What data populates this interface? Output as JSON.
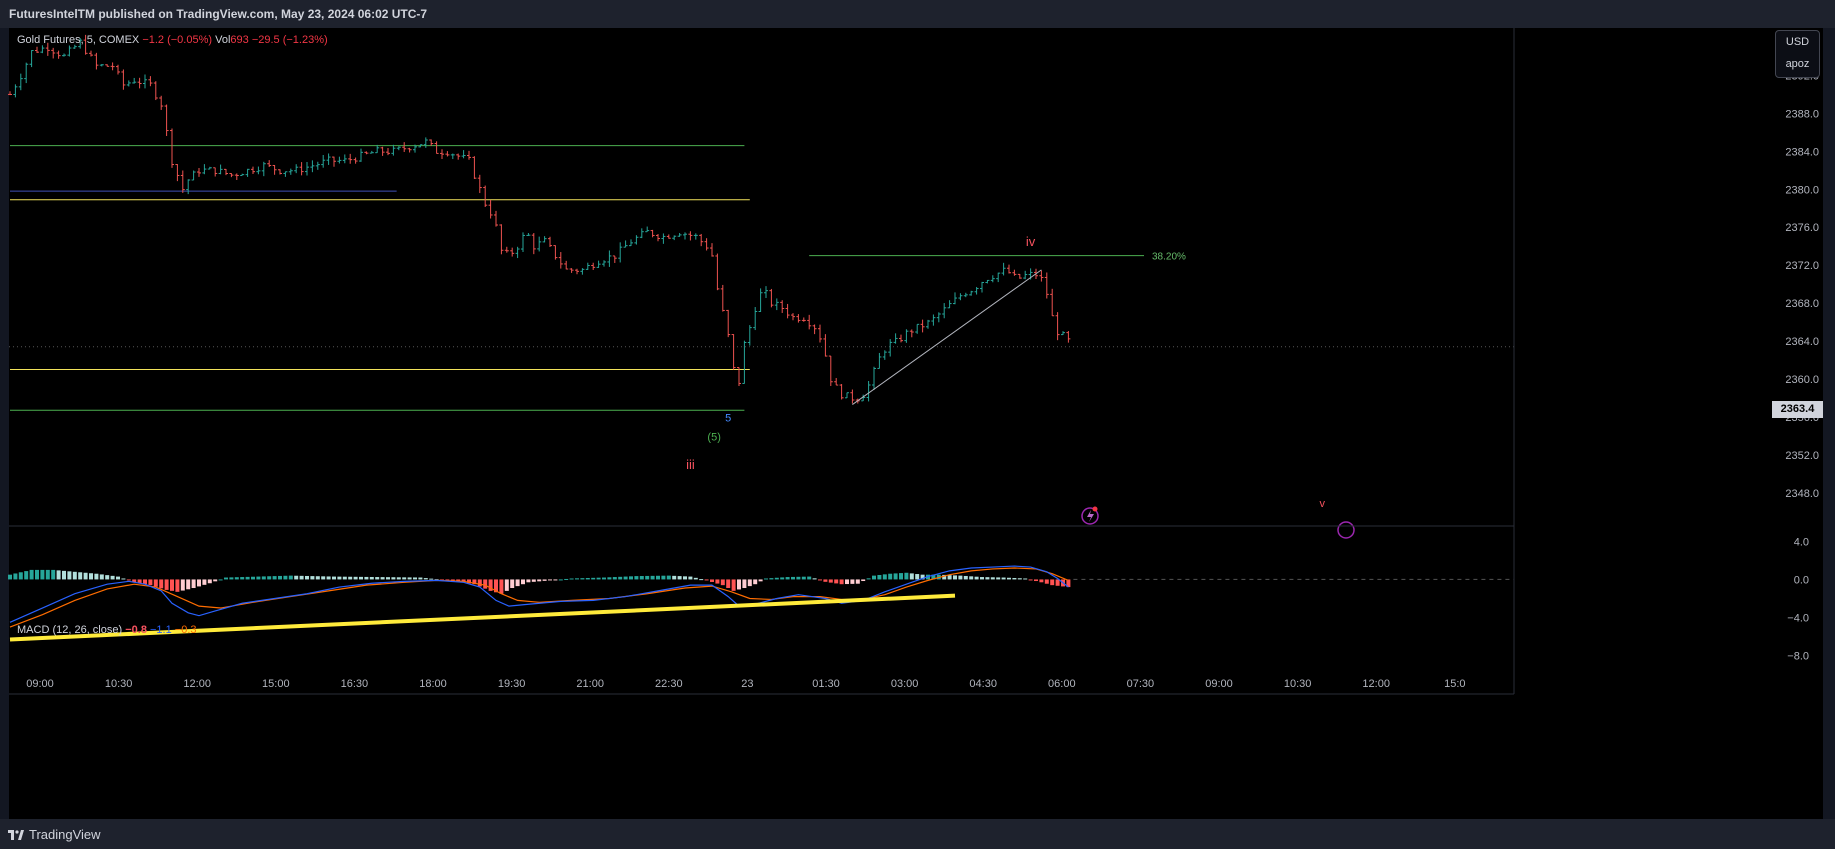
{
  "header": {
    "published_text": "FuturesIntelTM published on TradingView.com, May 23, 2024 06:02 UTC-7"
  },
  "legend": {
    "symbol": "Gold Futures, 5, COMEX",
    "change": "−1.2 (−0.05%)",
    "vol_label": "Vol",
    "vol_value": "693",
    "vol_change": "−29.5 (−1.23%)"
  },
  "macd_legend": {
    "label": "MACD (12, 26, close)",
    "v1": "−0.8",
    "v2": "−1.1",
    "v3": "−0.3"
  },
  "price_scale": {
    "currency": "USD",
    "sub": "apoz",
    "current_price": "2363.4"
  },
  "footer": {
    "brand": "TradingView"
  },
  "colors": {
    "up": "#26a69a",
    "down": "#ef5350",
    "green_line": "#4caf50",
    "yellow_line": "#f2e35c",
    "blue_line": "#3f51b5",
    "macd_line": "#2962ff",
    "signal_line": "#ff6d00",
    "wave_label": "#f7525f"
  },
  "chart_data": [
    {
      "type": "candlestick",
      "title": "Gold Futures, 5, COMEX",
      "x_ticks": [
        "09:00",
        "10:30",
        "12:00",
        "15:00",
        "16:30",
        "18:00",
        "19:30",
        "21:00",
        "22:30",
        "23",
        "01:30",
        "03:00",
        "04:30",
        "06:00",
        "07:30",
        "09:00",
        "10:30",
        "12:00",
        "15:0"
      ],
      "y_ticks": [
        2392.0,
        2388.0,
        2384.0,
        2380.0,
        2376.0,
        2372.0,
        2368.0,
        2364.0,
        2360.0,
        2356.0,
        2352.0,
        2348.0
      ],
      "ylim": [
        2344.5,
        2397.0
      ],
      "x_index_range": [
        0,
        1000
      ],
      "price_path": [
        [
          0,
          2390
        ],
        [
          10,
          2392
        ],
        [
          20,
          2394.5
        ],
        [
          35,
          2395
        ],
        [
          50,
          2394
        ],
        [
          65,
          2395.5
        ],
        [
          80,
          2393
        ],
        [
          95,
          2393
        ],
        [
          105,
          2391
        ],
        [
          115,
          2391.5
        ],
        [
          130,
          2391
        ],
        [
          140,
          2389
        ],
        [
          145,
          2386
        ],
        [
          150,
          2383
        ],
        [
          155,
          2381.5
        ],
        [
          160,
          2380
        ],
        [
          165,
          2381
        ],
        [
          175,
          2382
        ],
        [
          190,
          2382
        ],
        [
          205,
          2381.5
        ],
        [
          220,
          2382
        ],
        [
          235,
          2382.5
        ],
        [
          250,
          2382
        ],
        [
          265,
          2382
        ],
        [
          280,
          2382.5
        ],
        [
          295,
          2383
        ],
        [
          310,
          2383
        ],
        [
          325,
          2383.5
        ],
        [
          340,
          2384
        ],
        [
          355,
          2384
        ],
        [
          370,
          2384.5
        ],
        [
          385,
          2385
        ],
        [
          395,
          2384
        ],
        [
          405,
          2384
        ],
        [
          415,
          2383.5
        ],
        [
          425,
          2383
        ],
        [
          435,
          2380
        ],
        [
          440,
          2378.5
        ],
        [
          448,
          2377
        ],
        [
          455,
          2373.5
        ],
        [
          462,
          2373
        ],
        [
          470,
          2374
        ],
        [
          478,
          2375.5
        ],
        [
          485,
          2374
        ],
        [
          495,
          2374.5
        ],
        [
          505,
          2373
        ],
        [
          515,
          2371.5
        ],
        [
          530,
          2371.5
        ],
        [
          545,
          2372.5
        ],
        [
          560,
          2373
        ],
        [
          575,
          2374.5
        ],
        [
          590,
          2375.5
        ],
        [
          605,
          2375
        ],
        [
          620,
          2375.5
        ],
        [
          635,
          2375
        ],
        [
          645,
          2374
        ],
        [
          650,
          2373
        ],
        [
          655,
          2369.5
        ],
        [
          660,
          2367
        ],
        [
          665,
          2364.5
        ],
        [
          670,
          2361
        ],
        [
          673,
          2357.5
        ],
        [
          678,
          2363
        ],
        [
          684,
          2365
        ],
        [
          690,
          2367.5
        ],
        [
          697,
          2369.5
        ],
        [
          705,
          2368
        ],
        [
          715,
          2367.5
        ],
        [
          725,
          2366.5
        ],
        [
          735,
          2366.5
        ],
        [
          745,
          2365.5
        ],
        [
          752,
          2364
        ],
        [
          760,
          2360
        ],
        [
          768,
          2358.5
        ],
        [
          778,
          2358
        ],
        [
          788,
          2358
        ],
        [
          796,
          2359.5
        ],
        [
          804,
          2362
        ],
        [
          812,
          2363.5
        ],
        [
          822,
          2364
        ],
        [
          832,
          2365
        ],
        [
          842,
          2365.5
        ],
        [
          852,
          2366
        ],
        [
          862,
          2367
        ],
        [
          872,
          2368
        ],
        [
          882,
          2369
        ],
        [
          892,
          2369.5
        ],
        [
          902,
          2370.5
        ],
        [
          912,
          2371
        ],
        [
          922,
          2371.5
        ],
        [
          932,
          2370.5
        ],
        [
          942,
          2371
        ],
        [
          952,
          2371
        ],
        [
          958,
          2370
        ],
        [
          962,
          2368
        ],
        [
          966,
          2366
        ],
        [
          970,
          2365
        ],
        [
          975,
          2364.5
        ],
        [
          980,
          2364
        ]
      ],
      "horizontal_levels": [
        {
          "price": 2384.6,
          "x_start": 0,
          "x_end": 680,
          "color": "green"
        },
        {
          "price": 2378.9,
          "x_start": 0,
          "x_end": 685,
          "color": "yellow"
        },
        {
          "price": 2379.8,
          "x_start": 0,
          "x_end": 358,
          "color": "blue"
        },
        {
          "price": 2361.0,
          "x_start": 0,
          "x_end": 685,
          "color": "yellow"
        },
        {
          "price": 2356.7,
          "x_start": 0,
          "x_end": 680,
          "color": "green"
        },
        {
          "price": 2373.0,
          "x_start": 740,
          "x_end": 1050,
          "color": "green",
          "label": "38.20%"
        }
      ],
      "trend_line": {
        "from": [
          780,
          2357.3
        ],
        "to": [
          955,
          2371.5
        ]
      },
      "annotations": [
        {
          "text": "5",
          "x": 665,
          "price": 2355.5,
          "color": "#448aff"
        },
        {
          "text": "(5)",
          "x": 652,
          "price": 2353.5,
          "color": "#4caf50"
        },
        {
          "text": "iii",
          "x": 630,
          "price": 2350.5,
          "color": "#f7525f"
        },
        {
          "text": "iv",
          "x": 945,
          "price": 2374.0,
          "color": "#f7525f"
        },
        {
          "text": "v",
          "x": 1215,
          "price": 2346.5,
          "color": "#f7525f"
        }
      ]
    },
    {
      "type": "macd",
      "title": "MACD (12, 26, close)",
      "y_ticks": [
        4.0,
        0.0,
        -4.0,
        -8.0
      ],
      "ylim": [
        -9.5,
        5.5
      ],
      "macd_line": [
        [
          0,
          -4.5
        ],
        [
          30,
          -3
        ],
        [
          60,
          -1.5
        ],
        [
          90,
          -0.5
        ],
        [
          110,
          -0.2
        ],
        [
          125,
          -0.5
        ],
        [
          140,
          -1.2
        ],
        [
          150,
          -2.5
        ],
        [
          165,
          -3.5
        ],
        [
          175,
          -3.8
        ],
        [
          190,
          -3.3
        ],
        [
          215,
          -2.5
        ],
        [
          245,
          -2
        ],
        [
          275,
          -1.5
        ],
        [
          305,
          -0.8
        ],
        [
          335,
          -0.4
        ],
        [
          365,
          -0.2
        ],
        [
          395,
          -0.1
        ],
        [
          420,
          -0.3
        ],
        [
          435,
          -0.8
        ],
        [
          450,
          -2.2
        ],
        [
          462,
          -2.8
        ],
        [
          480,
          -2.6
        ],
        [
          510,
          -2.3
        ],
        [
          540,
          -2.2
        ],
        [
          570,
          -1.8
        ],
        [
          600,
          -1.2
        ],
        [
          630,
          -0.6
        ],
        [
          650,
          -0.6
        ],
        [
          665,
          -1.8
        ],
        [
          675,
          -2.8
        ],
        [
          690,
          -2.6
        ],
        [
          710,
          -2
        ],
        [
          730,
          -1.6
        ],
        [
          755,
          -2
        ],
        [
          770,
          -2.5
        ],
        [
          790,
          -2.2
        ],
        [
          810,
          -1.3
        ],
        [
          830,
          -0.5
        ],
        [
          850,
          0.3
        ],
        [
          870,
          0.9
        ],
        [
          890,
          1.2
        ],
        [
          910,
          1.3
        ],
        [
          930,
          1.4
        ],
        [
          945,
          1.3
        ],
        [
          960,
          0.8
        ],
        [
          970,
          0.1
        ],
        [
          980,
          -0.8
        ]
      ],
      "signal_line": [
        [
          0,
          -5
        ],
        [
          30,
          -3.7
        ],
        [
          60,
          -2.2
        ],
        [
          90,
          -1
        ],
        [
          115,
          -0.5
        ],
        [
          135,
          -0.8
        ],
        [
          155,
          -1.8
        ],
        [
          175,
          -2.8
        ],
        [
          195,
          -3
        ],
        [
          225,
          -2.4
        ],
        [
          260,
          -1.8
        ],
        [
          295,
          -1.2
        ],
        [
          330,
          -0.6
        ],
        [
          365,
          -0.3
        ],
        [
          395,
          -0.1
        ],
        [
          420,
          -0.2
        ],
        [
          440,
          -0.6
        ],
        [
          455,
          -1.5
        ],
        [
          470,
          -2.2
        ],
        [
          490,
          -2.4
        ],
        [
          520,
          -2.2
        ],
        [
          555,
          -2
        ],
        [
          590,
          -1.5
        ],
        [
          625,
          -0.9
        ],
        [
          650,
          -0.7
        ],
        [
          668,
          -1.3
        ],
        [
          685,
          -2
        ],
        [
          705,
          -2.1
        ],
        [
          725,
          -1.8
        ],
        [
          750,
          -1.8
        ],
        [
          770,
          -2.1
        ],
        [
          790,
          -2.1
        ],
        [
          810,
          -1.6
        ],
        [
          830,
          -0.8
        ],
        [
          850,
          -0.1
        ],
        [
          870,
          0.5
        ],
        [
          890,
          0.9
        ],
        [
          910,
          1.1
        ],
        [
          930,
          1.2
        ],
        [
          950,
          1.1
        ],
        [
          965,
          0.6
        ],
        [
          980,
          -0.1
        ]
      ],
      "histogram": [
        [
          0,
          0.5
        ],
        [
          20,
          1
        ],
        [
          40,
          1
        ],
        [
          60,
          0.8
        ],
        [
          80,
          0.6
        ],
        [
          100,
          0.3
        ],
        [
          115,
          -0.3
        ],
        [
          130,
          -0.6
        ],
        [
          145,
          -1.1
        ],
        [
          155,
          -1.3
        ],
        [
          170,
          -0.9
        ],
        [
          185,
          -0.4
        ],
        [
          200,
          0.2
        ],
        [
          230,
          0.3
        ],
        [
          260,
          0.4
        ],
        [
          300,
          0.3
        ],
        [
          340,
          0.25
        ],
        [
          380,
          0.2
        ],
        [
          410,
          -0.15
        ],
        [
          430,
          -0.5
        ],
        [
          445,
          -1.2
        ],
        [
          455,
          -1.5
        ],
        [
          465,
          -0.9
        ],
        [
          480,
          -0.3
        ],
        [
          500,
          -0.1
        ],
        [
          520,
          0.1
        ],
        [
          550,
          0.2
        ],
        [
          580,
          0.35
        ],
        [
          610,
          0.4
        ],
        [
          630,
          0.3
        ],
        [
          645,
          -0.1
        ],
        [
          660,
          -0.6
        ],
        [
          670,
          -1.2
        ],
        [
          680,
          -0.9
        ],
        [
          690,
          -0.5
        ],
        [
          700,
          0.1
        ],
        [
          720,
          0.25
        ],
        [
          740,
          0.3
        ],
        [
          755,
          -0.25
        ],
        [
          770,
          -0.5
        ],
        [
          785,
          -0.45
        ],
        [
          800,
          0.4
        ],
        [
          815,
          0.6
        ],
        [
          830,
          0.7
        ],
        [
          845,
          0.5
        ],
        [
          860,
          0.5
        ],
        [
          880,
          0.4
        ],
        [
          900,
          0.25
        ],
        [
          920,
          0.2
        ],
        [
          940,
          0.1
        ],
        [
          955,
          -0.3
        ],
        [
          965,
          -0.6
        ],
        [
          980,
          -0.8
        ]
      ],
      "trend_line": {
        "from": [
          0,
          -6.3
        ],
        "to": [
          875,
          -1.7
        ]
      }
    }
  ]
}
